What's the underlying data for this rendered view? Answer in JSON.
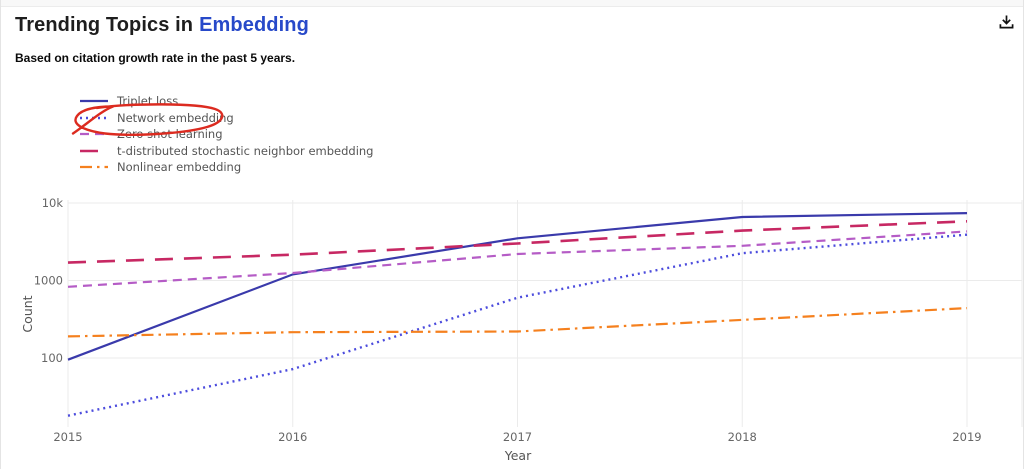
{
  "header": {
    "title_prefix": "Trending Topics in",
    "title_highlight": "Embedding",
    "subtitle": "Based on citation growth rate in the past 5 years.",
    "title_highlight_color": "#2749c9",
    "download_icon": "download-icon"
  },
  "annotation": {
    "shape": "hand-drawn-ellipse",
    "target_legend_item": "Network embedding",
    "color": "#dc2b20"
  },
  "chart_data": {
    "type": "line",
    "x": [
      2015,
      2016,
      2017,
      2018,
      2019
    ],
    "series": [
      {
        "name": "Triplet loss",
        "color": "#3a3aab",
        "dash": "solid",
        "width": 2.2,
        "values": [
          95,
          1200,
          3500,
          6600,
          7400
        ]
      },
      {
        "name": "Network embedding",
        "color": "#4c4cdd",
        "dash": "dot",
        "width": 2.4,
        "values": [
          18,
          72,
          600,
          2250,
          3900
        ]
      },
      {
        "name": "Zero shot learning",
        "color": "#b55cc6",
        "dash": "dash",
        "width": 2.2,
        "values": [
          830,
          1250,
          2200,
          2800,
          4300
        ]
      },
      {
        "name": "t-distributed stochastic neighbor embedding",
        "color": "#c72863",
        "dash": "longdash",
        "width": 2.6,
        "values": [
          1700,
          2150,
          3000,
          4400,
          5800
        ]
      },
      {
        "name": "Nonlinear embedding",
        "color": "#f5801e",
        "dash": "dashdot",
        "width": 2.2,
        "values": [
          190,
          215,
          220,
          310,
          440
        ]
      }
    ],
    "xlabel": "Year",
    "ylabel": "Count",
    "yscale": "log",
    "ylim": [
      10,
      12000
    ],
    "yticks": [
      {
        "v": 100,
        "label": "100"
      },
      {
        "v": 1000,
        "label": "1000"
      },
      {
        "v": 10000,
        "label": "10k"
      }
    ],
    "grid": true,
    "legend_position": "top-left",
    "tick_color": "#666666",
    "axis_title_color": "#555555",
    "grid_color": "#ebebeb"
  }
}
